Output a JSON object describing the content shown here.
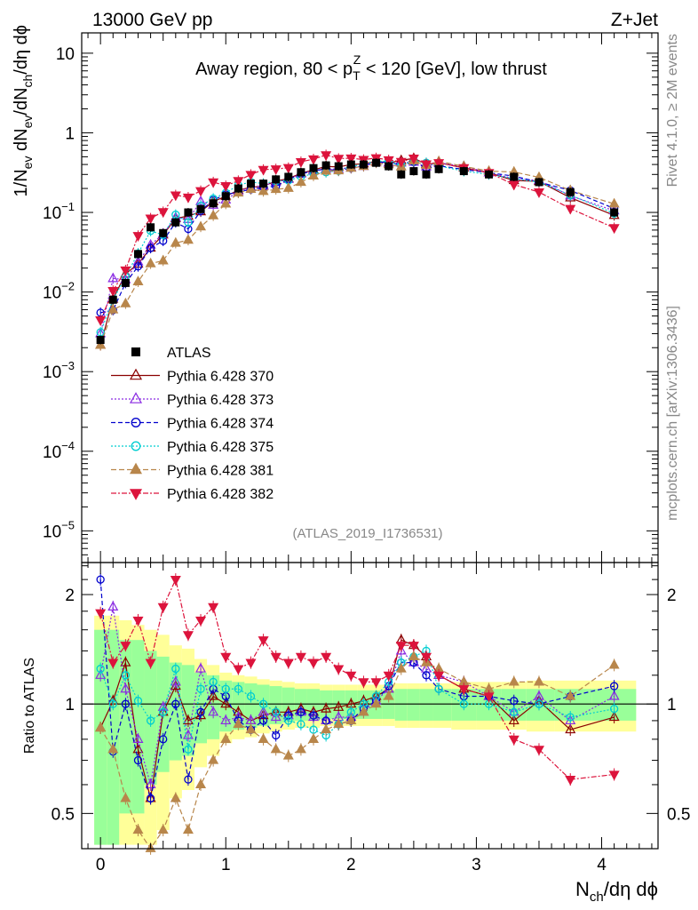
{
  "header": {
    "left": "13000 GeV pp",
    "right": "Z+Jet",
    "side_top": "Rivet 4.1.0, ≥ 2M events",
    "side_bottom": "mcplots.cern.ch [arXiv:1306.3436]"
  },
  "chart_data": {
    "type": "scatter",
    "title": "Away region, 80 < p_T^Z < 120 [GeV], low thrust",
    "title_parts": {
      "pre": "Away region, 80 < p",
      "sub": "T",
      "sup": "Z",
      "post": " < 120 [GeV], low thrust"
    },
    "analysis_tag": "(ATLAS_2019_I1736531)",
    "xlabel": {
      "main": "N",
      "sub": "ch",
      "rest": "/dη dϕ"
    },
    "ylabel": {
      "p1": "1/N",
      "s1": "ev",
      "p2": " dN",
      "s2": "ev",
      "p3": "/dN",
      "s3": "ch",
      "p4": "/dη dϕ"
    },
    "ratio_ylabel": "Ratio to ATLAS",
    "xlim": [
      -0.15,
      4.45
    ],
    "ylim": [
      4e-06,
      18
    ],
    "ratio_ylim": [
      0.4,
      2.45
    ],
    "x_ticks": [
      "0",
      "1",
      "2",
      "3",
      "4"
    ],
    "y_ticks": [
      {
        "v": 10,
        "b": "10",
        "e": ""
      },
      {
        "v": 1,
        "b": "1",
        "e": ""
      },
      {
        "v": 0.1,
        "b": "10",
        "e": "−1"
      },
      {
        "v": 0.01,
        "b": "10",
        "e": "−2"
      },
      {
        "v": 0.001,
        "b": "10",
        "e": "−3"
      },
      {
        "v": 0.0001,
        "b": "10",
        "e": "−4"
      },
      {
        "v": 1e-05,
        "b": "10",
        "e": "−5"
      }
    ],
    "ratio_ticks": [
      "2",
      "1",
      "0.5"
    ],
    "ratio_tick_values": [
      2,
      1,
      0.5
    ],
    "x": [
      0.0,
      0.1,
      0.2,
      0.3,
      0.4,
      0.5,
      0.6,
      0.7,
      0.8,
      0.9,
      1.0,
      1.1,
      1.2,
      1.3,
      1.4,
      1.5,
      1.6,
      1.7,
      1.8,
      1.9,
      2.0,
      2.1,
      2.2,
      2.3,
      2.4,
      2.5,
      2.6,
      2.7,
      2.9,
      3.1,
      3.3,
      3.5,
      3.75,
      4.1
    ],
    "data": {
      "name": "ATLAS",
      "values": [
        0.0025,
        0.008,
        0.013,
        0.03,
        0.065,
        0.055,
        0.075,
        0.1,
        0.11,
        0.13,
        0.16,
        0.2,
        0.23,
        0.23,
        0.26,
        0.28,
        0.32,
        0.36,
        0.39,
        0.38,
        0.4,
        0.4,
        0.42,
        0.38,
        0.3,
        0.33,
        0.3,
        0.35,
        0.33,
        0.3,
        0.28,
        0.24,
        0.18,
        0.1
      ]
    },
    "band_inner": [
      0.6,
      0.6,
      0.5,
      0.5,
      0.4,
      0.35,
      0.3,
      0.28,
      0.22,
      0.2,
      0.16,
      0.15,
      0.14,
      0.13,
      0.12,
      0.11,
      0.1,
      0.1,
      0.09,
      0.09,
      0.09,
      0.09,
      0.09,
      0.09,
      0.1,
      0.1,
      0.1,
      0.1,
      0.1,
      0.1,
      0.1,
      0.1,
      0.1,
      0.1
    ],
    "band_outer": [
      0.75,
      0.75,
      0.7,
      0.65,
      0.6,
      0.55,
      0.45,
      0.42,
      0.33,
      0.28,
      0.22,
      0.2,
      0.19,
      0.17,
      0.16,
      0.15,
      0.14,
      0.14,
      0.13,
      0.13,
      0.13,
      0.13,
      0.13,
      0.13,
      0.14,
      0.14,
      0.14,
      0.14,
      0.15,
      0.15,
      0.15,
      0.16,
      0.16,
      0.16
    ],
    "series": [
      {
        "name": "Pythia 6.428 370",
        "color": "#8b0000",
        "marker": "tri-up-open",
        "dash": "",
        "ratio": [
          0.86,
          1.02,
          1.3,
          0.75,
          0.55,
          0.95,
          1.12,
          0.9,
          0.93,
          1.05,
          1.0,
          0.95,
          0.9,
          0.93,
          0.95,
          0.95,
          0.97,
          0.95,
          0.97,
          0.98,
          1.0,
          1.02,
          1.05,
          1.1,
          1.5,
          1.45,
          1.35,
          1.2,
          1.1,
          1.05,
          0.9,
          1.02,
          0.85,
          0.92
        ]
      },
      {
        "name": "Pythia 6.428 373",
        "color": "#8a2be2",
        "marker": "tri-up-open",
        "dash": "2,2",
        "ratio": [
          1.2,
          1.85,
          1.1,
          0.8,
          0.6,
          0.98,
          1.15,
          0.82,
          1.25,
          0.95,
          0.9,
          0.92,
          0.9,
          0.95,
          0.92,
          0.93,
          0.95,
          0.92,
          0.9,
          0.92,
          0.92,
          0.95,
          1.02,
          1.1,
          1.4,
          1.3,
          1.25,
          1.2,
          1.15,
          1.05,
          0.95,
          1.05,
          0.9,
          1.05
        ]
      },
      {
        "name": "Pythia 6.428 374",
        "color": "#0000cd",
        "marker": "circle-open",
        "dash": "5,3",
        "ratio": [
          2.2,
          0.74,
          1.0,
          0.7,
          0.55,
          0.8,
          1.0,
          0.62,
          0.95,
          1.1,
          1.05,
          0.9,
          0.85,
          0.9,
          0.82,
          0.93,
          0.95,
          0.93,
          0.9,
          0.88,
          0.9,
          0.97,
          1.02,
          1.12,
          1.3,
          1.3,
          1.2,
          1.1,
          1.05,
          1.05,
          1.02,
          1.0,
          1.05,
          1.12
        ]
      },
      {
        "name": "Pythia 6.428 375",
        "color": "#00ced1",
        "marker": "circle-open",
        "dash": "2,2",
        "ratio": [
          1.25,
          1.0,
          1.2,
          1.02,
          0.9,
          0.95,
          1.25,
          0.75,
          1.1,
          1.15,
          1.1,
          1.1,
          1.05,
          1.0,
          0.95,
          0.9,
          0.88,
          0.85,
          0.82,
          0.88,
          0.95,
          1.0,
          1.05,
          1.15,
          1.3,
          1.35,
          1.4,
          1.1,
          1.0,
          1.0,
          0.95,
          1.0,
          0.92,
          0.97
        ]
      },
      {
        "name": "Pythia 6.428 381",
        "color": "#b8864b",
        "marker": "tri-up-filled",
        "dash": "6,3",
        "ratio": [
          0.86,
          0.75,
          0.55,
          0.45,
          0.35,
          0.45,
          0.55,
          0.45,
          0.6,
          0.7,
          0.8,
          0.88,
          0.85,
          0.8,
          0.75,
          0.72,
          0.75,
          0.8,
          0.85,
          0.88,
          0.9,
          0.95,
          1.0,
          1.05,
          1.25,
          1.35,
          1.3,
          1.25,
          1.15,
          1.1,
          1.15,
          1.15,
          1.05,
          1.28
        ]
      },
      {
        "name": "Pythia 6.428 382",
        "color": "#dc143c",
        "marker": "tri-down-filled",
        "dash": "6,2,2,2",
        "ratio": [
          1.78,
          1.3,
          1.45,
          1.7,
          1.3,
          1.85,
          2.2,
          1.55,
          1.7,
          1.85,
          1.35,
          1.25,
          1.3,
          1.5,
          1.35,
          1.3,
          1.35,
          1.3,
          1.35,
          1.25,
          1.2,
          1.15,
          1.15,
          1.2,
          1.45,
          1.45,
          1.35,
          1.2,
          1.1,
          1.05,
          0.8,
          0.75,
          0.62,
          0.64
        ]
      }
    ]
  }
}
